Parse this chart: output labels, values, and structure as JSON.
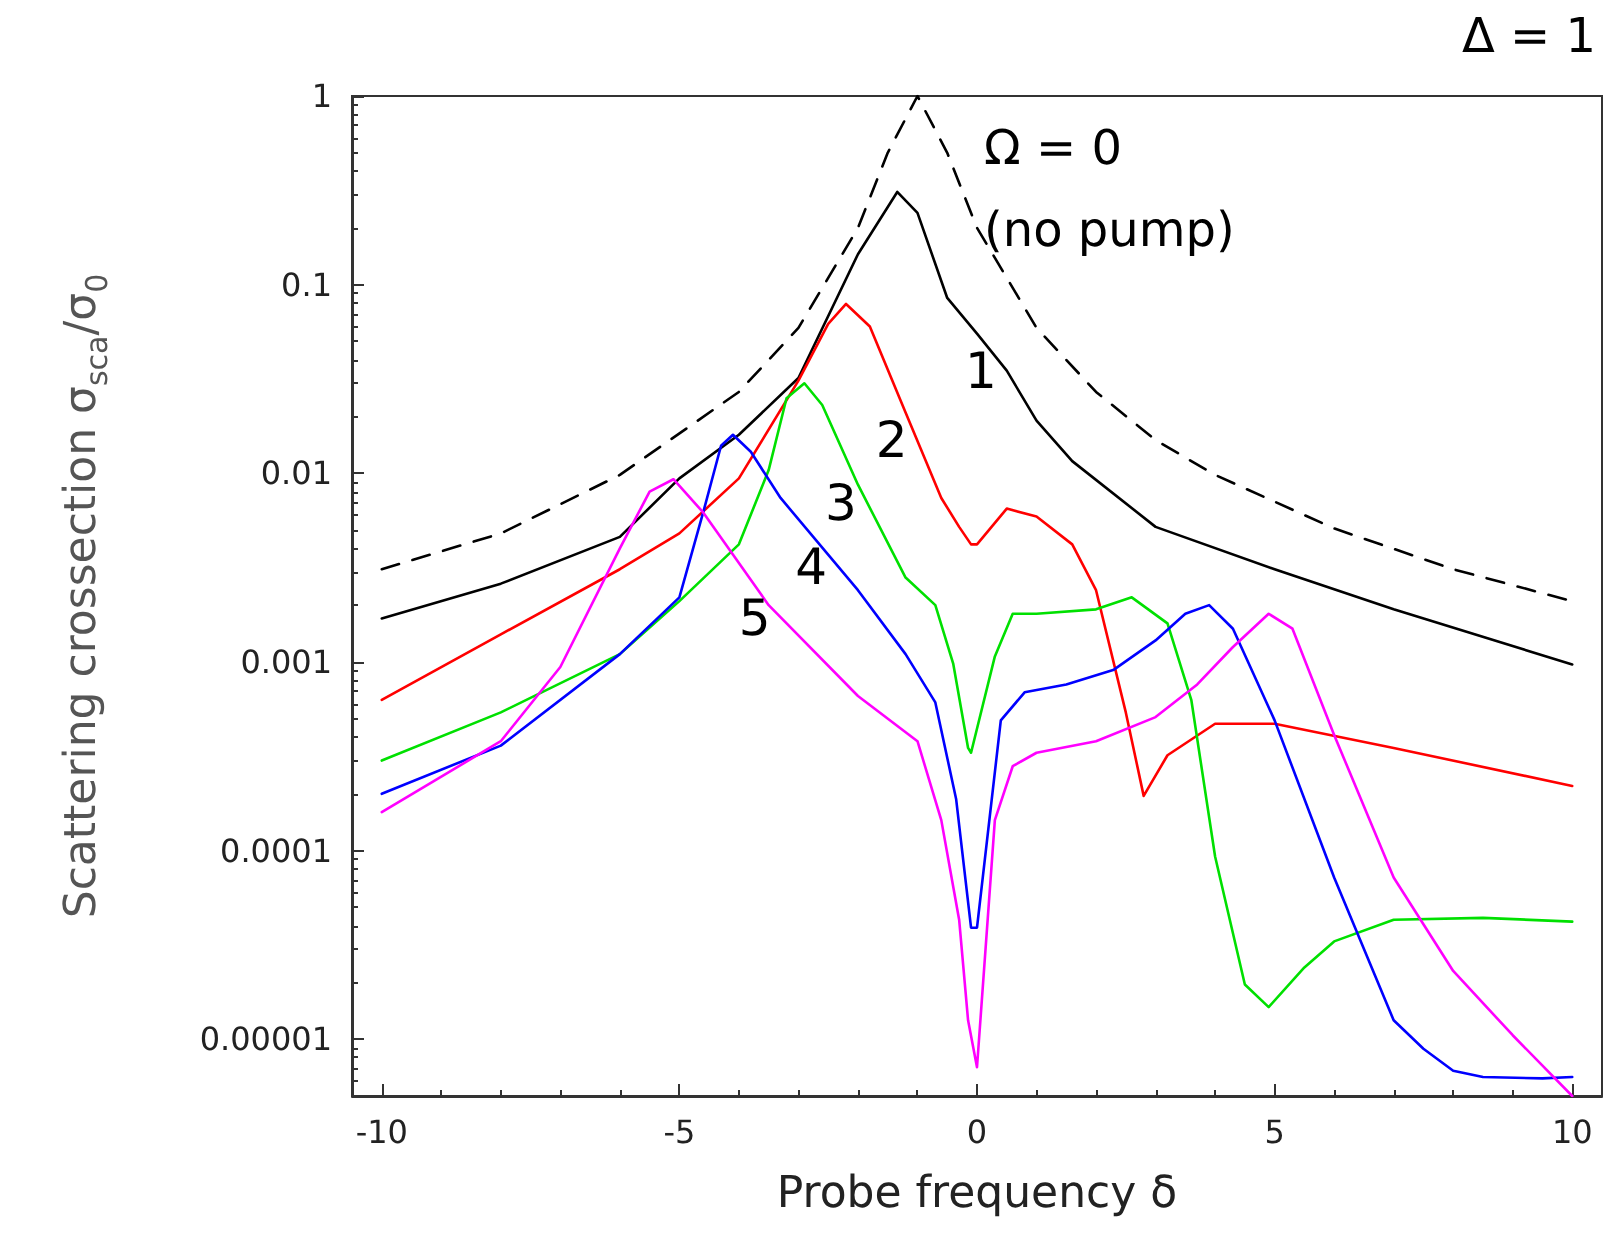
{
  "chart_data": {
    "type": "line",
    "xlabel": "Probe frequency δ",
    "ylabel": "Scattering crossection σ$_{sca}$/σ$_{0}$",
    "log": "y",
    "marker": "none",
    "grid": false,
    "xlim": [
      -10.5,
      10.5
    ],
    "xticks": [
      -10,
      -5,
      0,
      5,
      10
    ],
    "ylim": [
      5e-06,
      1
    ],
    "yticks": [
      {
        "value": 1e-05,
        "label": "0.00001"
      },
      0.0001,
      0.001,
      0.01,
      0.1,
      1
    ],
    "annotations": [
      "Δ = 1",
      "Ω = 0",
      "(no pump)",
      {
        "text": "1",
        "x": 0.5,
        "y": 0.035
      },
      {
        "text": "2",
        "x": -1.0,
        "y": 0.015
      },
      {
        "text": "3",
        "x": -1.85,
        "y": 0.007
      },
      {
        "text": "4",
        "x": -2.35,
        "y": 0.0032
      },
      {
        "text": "5",
        "x": -3.3,
        "y": 0.0017
      }
    ],
    "series": [
      {
        "color": "#000000",
        "line_style": "dashed",
        "x": [
          -10,
          -8,
          -6,
          -4,
          -3,
          -2,
          -1.5,
          -1,
          -0.5,
          0,
          1,
          2,
          3,
          4,
          6,
          8,
          10
        ],
        "values": [
          0.0031,
          0.0048,
          0.0098,
          0.027,
          0.059,
          0.2,
          0.5,
          1,
          0.5,
          0.2,
          0.059,
          0.027,
          0.015,
          0.0098,
          0.0051,
          0.0031,
          0.0021
        ]
      },
      {
        "color": "#000000",
        "x": [
          -10,
          -8,
          -6,
          -5,
          -4,
          -3,
          -2,
          -1.34,
          -1,
          -0.5,
          0,
          0.5,
          1,
          1.6,
          3,
          5,
          7,
          10
        ],
        "values": [
          0.0017,
          0.0026,
          0.0046,
          0.0094,
          0.016,
          0.032,
          0.145,
          0.31,
          0.24,
          0.085,
          0.055,
          0.035,
          0.019,
          0.0116,
          0.0052,
          0.0031,
          0.0019,
          0.00097
        ]
      },
      {
        "color": "#ff0000",
        "x": [
          -10,
          -8,
          -6,
          -5,
          -4,
          -3,
          -2.5,
          -2.2,
          -1.8,
          -1.2,
          -0.6,
          -0.3,
          -0.1,
          0,
          0.5,
          1,
          1.6,
          2,
          2.5,
          2.8,
          3.2,
          4,
          5,
          7,
          10
        ],
        "values": [
          0.00063,
          0.0014,
          0.0031,
          0.0048,
          0.0094,
          0.031,
          0.062,
          0.079,
          0.06,
          0.021,
          0.0074,
          0.0052,
          0.0042,
          0.0042,
          0.0065,
          0.0059,
          0.0042,
          0.0024,
          0.00054,
          0.000195,
          0.00032,
          0.00047,
          0.00047,
          0.00035,
          0.00022
        ]
      },
      {
        "color": "#00e000",
        "x": [
          -10,
          -8,
          -6,
          -5,
          -4,
          -3.5,
          -3.2,
          -2.9,
          -2.6,
          -2,
          -1.2,
          -0.7,
          -0.4,
          -0.15,
          -0.1,
          0.3,
          0.6,
          1,
          2,
          2.6,
          3.2,
          3.6,
          4,
          4.5,
          4.9,
          5.5,
          6,
          7,
          8.5,
          10
        ],
        "values": [
          0.0003,
          0.00054,
          0.0011,
          0.0021,
          0.0042,
          0.0104,
          0.025,
          0.03,
          0.023,
          0.0087,
          0.0028,
          0.002,
          0.00098,
          0.00035,
          0.00033,
          0.00107,
          0.0018,
          0.0018,
          0.0019,
          0.0022,
          0.0016,
          0.00063,
          9.3e-05,
          1.95e-05,
          1.48e-05,
          2.4e-05,
          3.3e-05,
          4.3e-05,
          4.4e-05,
          4.2e-05
        ]
      },
      {
        "color": "#0000ff",
        "x": [
          -10,
          -8,
          -6,
          -5,
          -4.6,
          -4.3,
          -4.1,
          -3.8,
          -3.3,
          -2,
          -1.2,
          -0.7,
          -0.35,
          -0.1,
          0,
          0.4,
          0.8,
          1.5,
          2.3,
          3,
          3.5,
          3.9,
          4.3,
          5,
          6,
          7,
          7.5,
          8,
          8.5,
          9.5,
          10
        ],
        "values": [
          0.0002,
          0.00036,
          0.0011,
          0.0022,
          0.0062,
          0.014,
          0.016,
          0.013,
          0.0074,
          0.0024,
          0.0011,
          0.00061,
          0.000187,
          3.9e-05,
          3.9e-05,
          0.00049,
          0.00069,
          0.00076,
          0.00091,
          0.0013,
          0.0018,
          0.002,
          0.0015,
          0.00049,
          7.2e-05,
          1.26e-05,
          8.9e-06,
          6.8e-06,
          6.3e-06,
          6.2e-06,
          6.3e-06
        ]
      },
      {
        "color": "#ff00ff",
        "x": [
          -10,
          -8,
          -7,
          -6,
          -5.5,
          -5.1,
          -4.6,
          -3.5,
          -2,
          -1,
          -0.6,
          -0.3,
          -0.15,
          0,
          0.3,
          0.6,
          1,
          2,
          3,
          3.7,
          4.3,
          4.9,
          5.3,
          6,
          7,
          8,
          9,
          10
        ],
        "values": [
          0.00016,
          0.00038,
          0.00094,
          0.004,
          0.008,
          0.0093,
          0.0062,
          0.002,
          0.00066,
          0.00038,
          0.000145,
          4.3e-05,
          1.26e-05,
          7.1e-06,
          0.000145,
          0.00028,
          0.00033,
          0.00038,
          0.00051,
          0.00076,
          0.0012,
          0.0018,
          0.0015,
          0.00041,
          7.2e-05,
          2.3e-05,
          1.05e-05,
          5e-06
        ]
      }
    ]
  }
}
